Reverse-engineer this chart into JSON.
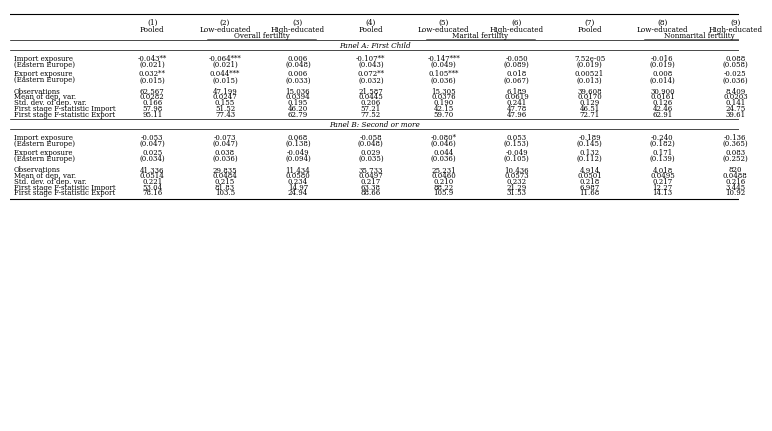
{
  "col_headers_line1": [
    "(1)",
    "(2)",
    "(3)",
    "(4)",
    "(5)",
    "(6)",
    "(7)",
    "(8)",
    "(9)"
  ],
  "col_headers_line2": [
    "Pooled",
    "Low-educated",
    "High-educated",
    "Pooled",
    "Low-educated",
    "High-educated",
    "Pooled",
    "Low-educated",
    "High-educated"
  ],
  "col_headers_group": [
    "Overall fertility",
    "Marital fertility",
    "Nonmarital fertility"
  ],
  "panel_a_title": "Panel A: First Child",
  "panel_b_title": "Panel B: Second or more",
  "panel_a": {
    "import_exposure": {
      "row_label": "Import exposure",
      "sub_label": "(Eastern Europe)",
      "values": [
        "-0.043**",
        "-0.064***",
        "0.006",
        "-0.107**",
        "-0.147***",
        "-0.050",
        "7.52e-05",
        "-0.016",
        "0.088"
      ],
      "se": [
        "(0.021)",
        "(0.021)",
        "(0.048)",
        "(0.043)",
        "(0.049)",
        "(0.089)",
        "(0.019)",
        "(0.019)",
        "(0.058)"
      ]
    },
    "export_exposure": {
      "row_label": "Export exposure",
      "sub_label": "(Eastern Europe)",
      "values": [
        "0.032**",
        "0.044***",
        "0.006",
        "0.072**",
        "0.105***",
        "0.018",
        "0.00521",
        "0.008",
        "-0.025"
      ],
      "se": [
        "(0.015)",
        "(0.015)",
        "(0.033)",
        "(0.032)",
        "(0.036)",
        "(0.067)",
        "(0.013)",
        "(0.014)",
        "(0.036)"
      ]
    },
    "stats": {
      "observations": [
        "62,567",
        "47,199",
        "15,036",
        "21,587",
        "15,305",
        "6,189",
        "39,608",
        "30,900",
        "8,409"
      ],
      "mean_dep_var": [
        "0.0282",
        "0.0247",
        "0.0394",
        "0.0445",
        "0.0376",
        "0.0619",
        "0.0170",
        "0.0161",
        "0.0203"
      ],
      "std_dev": [
        "0.166",
        "0.155",
        "0.195",
        "0.206",
        "0.190",
        "0.241",
        "0.129",
        "0.126",
        "0.141"
      ],
      "first_stage_import": [
        "57.98",
        "51.52",
        "46.20",
        "57.21",
        "42.15",
        "47.78",
        "46.51",
        "42.46",
        "24.75"
      ],
      "first_stage_export": [
        "95.11",
        "77.43",
        "62.79",
        "77.52",
        "59.70",
        "47.96",
        "72.71",
        "62.91",
        "39.61"
      ]
    }
  },
  "panel_b": {
    "import_exposure": {
      "row_label": "Import exposure",
      "sub_label": "(Eastern Europe)",
      "values": [
        "-0.053",
        "-0.073",
        "0.068",
        "-0.058",
        "-0.080*",
        "0.053",
        "-0.189",
        "-0.240",
        "-0.136"
      ],
      "se": [
        "(0.047)",
        "(0.047)",
        "(0.138)",
        "(0.048)",
        "(0.046)",
        "(0.153)",
        "(0.145)",
        "(0.182)",
        "(0.365)"
      ]
    },
    "export_exposure": {
      "row_label": "Export exposure",
      "sub_label": "(Eastern Europe)",
      "values": [
        "0.025",
        "0.038",
        "-0.049",
        "0.029",
        "0.044",
        "-0.049",
        "0.132",
        "0.171",
        "0.083"
      ],
      "se": [
        "(0.034)",
        "(0.036)",
        "(0.094)",
        "(0.035)",
        "(0.036)",
        "(0.105)",
        "(0.112)",
        "(0.139)",
        "(0.252)"
      ]
    },
    "stats": {
      "observations": [
        "41,336",
        "29,835",
        "11,434",
        "35,733",
        "25,231",
        "10,436",
        "4,914",
        "4,018",
        "820"
      ],
      "mean_dep_var": [
        "0.0514",
        "0.0484",
        "0.0580",
        "0.0497",
        "0.0460",
        "0.0573",
        "0.0501",
        "0.0495",
        "0.0488"
      ],
      "std_dev": [
        "0.221",
        "0.215",
        "0.234",
        "0.217",
        "0.210",
        "0.232",
        "0.218",
        "0.217",
        "0.216"
      ],
      "first_stage_import": [
        "53.04",
        "81.83",
        "14.97",
        "63.38",
        "88.22",
        "21.29",
        "6.987",
        "12.27",
        "3.445"
      ],
      "first_stage_export": [
        "78.16",
        "103.5",
        "24.94",
        "88.66",
        "105.9",
        "31.53",
        "11.68",
        "14.13",
        "10.92"
      ]
    }
  },
  "stat_labels": [
    "Observations",
    "Mean of dep. var.",
    "Std. dev. of dep. var.",
    "First stage F-statistic Import",
    "First stage F-statistic Export"
  ],
  "stat_keys": [
    "observations",
    "mean_dep_var",
    "std_dev",
    "first_stage_import",
    "first_stage_export"
  ]
}
